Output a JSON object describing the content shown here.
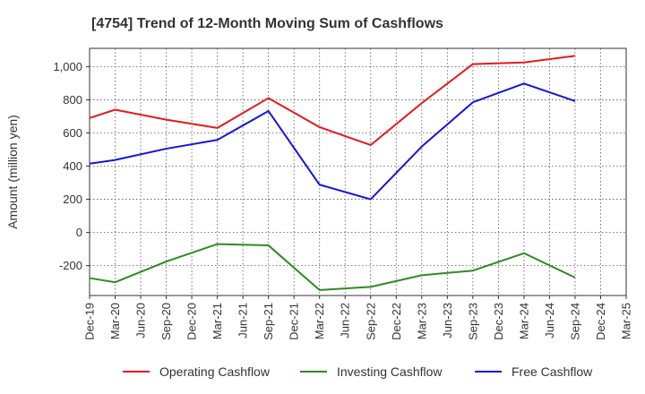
{
  "chart_data": {
    "type": "line",
    "title": "[4754]  Trend of 12-Month Moving Sum of Cashflows",
    "ylabel": "Amount (million yen)",
    "xlabel": "",
    "x": [
      "Dec-19",
      "Mar-20",
      "Jun-20",
      "Sep-20",
      "Dec-20",
      "Mar-21",
      "Jun-21",
      "Sep-21",
      "Dec-21",
      "Mar-22",
      "Jun-22",
      "Sep-22",
      "Dec-22",
      "Mar-23",
      "Jun-23",
      "Sep-23",
      "Dec-23",
      "Mar-24",
      "Jun-24",
      "Sep-24",
      "Dec-24",
      "Mar-25"
    ],
    "ylim": [
      -380,
      1110
    ],
    "yticks": [
      -200,
      0,
      200,
      400,
      600,
      800,
      1000
    ],
    "ytick_labels": [
      "-200",
      "0",
      "200",
      "400",
      "600",
      "800",
      "1,000"
    ],
    "grid": true,
    "legend_position": "bottom",
    "series": [
      {
        "name": "Operating Cashflow",
        "color": "#e31a1c",
        "points": [
          {
            "x": "Dec-19",
            "y": 690
          },
          {
            "x": "Mar-20",
            "y": 740
          },
          {
            "x": "Sep-20",
            "y": 680
          },
          {
            "x": "Mar-21",
            "y": 630
          },
          {
            "x": "Sep-21",
            "y": 810
          },
          {
            "x": "Mar-22",
            "y": 635
          },
          {
            "x": "Sep-22",
            "y": 527
          },
          {
            "x": "Mar-23",
            "y": 780
          },
          {
            "x": "Sep-23",
            "y": 1015
          },
          {
            "x": "Mar-24",
            "y": 1025
          },
          {
            "x": "Sep-24",
            "y": 1065
          }
        ]
      },
      {
        "name": "Investing Cashflow",
        "color": "#2e8b22",
        "points": [
          {
            "x": "Dec-19",
            "y": -275
          },
          {
            "x": "Mar-20",
            "y": -300
          },
          {
            "x": "Sep-20",
            "y": -175
          },
          {
            "x": "Mar-21",
            "y": -70
          },
          {
            "x": "Sep-21",
            "y": -78
          },
          {
            "x": "Mar-22",
            "y": -347
          },
          {
            "x": "Sep-22",
            "y": -328
          },
          {
            "x": "Mar-23",
            "y": -258
          },
          {
            "x": "Sep-23",
            "y": -230
          },
          {
            "x": "Mar-24",
            "y": -125
          },
          {
            "x": "Sep-24",
            "y": -272
          }
        ]
      },
      {
        "name": "Free Cashflow",
        "color": "#1515d8",
        "points": [
          {
            "x": "Dec-19",
            "y": 415
          },
          {
            "x": "Mar-20",
            "y": 437
          },
          {
            "x": "Sep-20",
            "y": 505
          },
          {
            "x": "Mar-21",
            "y": 558
          },
          {
            "x": "Sep-21",
            "y": 732
          },
          {
            "x": "Mar-22",
            "y": 288
          },
          {
            "x": "Sep-22",
            "y": 200
          },
          {
            "x": "Mar-23",
            "y": 518
          },
          {
            "x": "Sep-23",
            "y": 785
          },
          {
            "x": "Mar-24",
            "y": 898
          },
          {
            "x": "Sep-24",
            "y": 792
          }
        ]
      }
    ]
  }
}
